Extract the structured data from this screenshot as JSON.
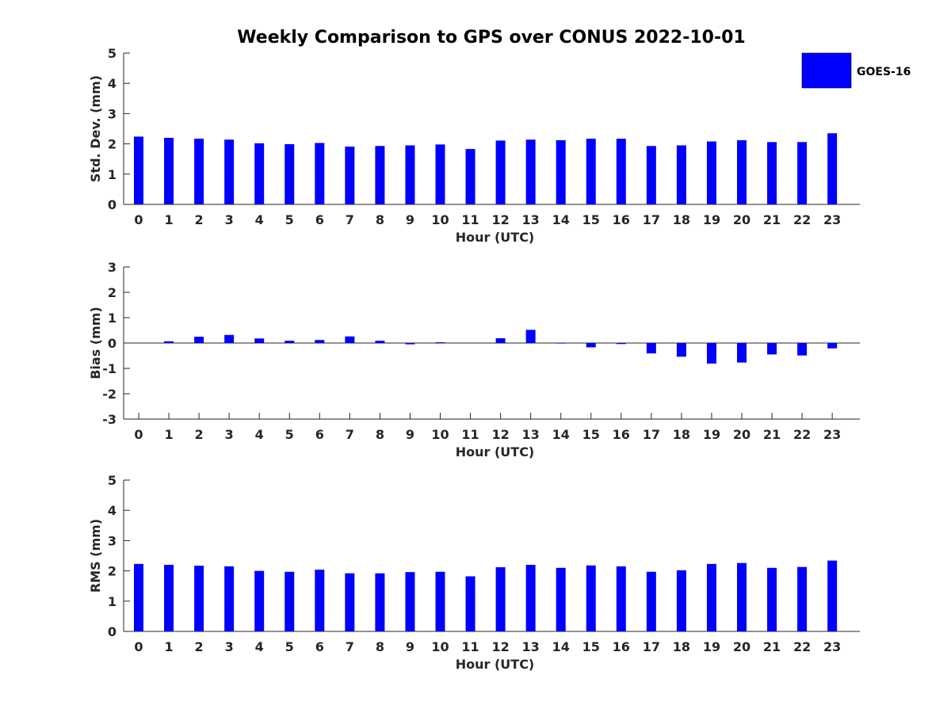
{
  "chart_data": {
    "type": "bar",
    "title": "Weekly Comparison to GPS over CONUS 2022-10-01",
    "legend": {
      "entries": [
        "GOES-16"
      ],
      "placement": "top-right",
      "color": "#0000ff"
    },
    "categories": [
      "0",
      "1",
      "2",
      "3",
      "4",
      "5",
      "6",
      "7",
      "8",
      "9",
      "10",
      "11",
      "12",
      "13",
      "14",
      "15",
      "16",
      "17",
      "18",
      "19",
      "20",
      "21",
      "22",
      "23"
    ],
    "panels": [
      {
        "name": "std-dev",
        "xlabel": "Hour (UTC)",
        "ylabel": "Std. Dev. (mm)",
        "ylim": [
          0,
          5
        ],
        "yticks": [
          "0",
          "1",
          "2",
          "3",
          "4",
          "5"
        ],
        "series": [
          {
            "name": "GOES-16",
            "values": [
              2.24,
              2.2,
              2.17,
              2.14,
              2.02,
              1.99,
              2.03,
              1.91,
              1.93,
              1.95,
              1.98,
              1.83,
              2.11,
              2.14,
              2.12,
              2.17,
              2.17,
              1.93,
              1.95,
              2.08,
              2.12,
              2.06,
              2.06,
              2.35
            ]
          }
        ]
      },
      {
        "name": "bias",
        "xlabel": "Hour (UTC)",
        "ylabel": "Bias (mm)",
        "ylim": [
          -3,
          3
        ],
        "yticks": [
          "-3",
          "-2",
          "-1",
          "0",
          "1",
          "2",
          "3"
        ],
        "series": [
          {
            "name": "GOES-16",
            "values": [
              0.0,
              0.07,
              0.25,
              0.32,
              0.18,
              0.09,
              0.12,
              0.26,
              0.09,
              -0.05,
              0.03,
              0.0,
              0.19,
              0.52,
              -0.02,
              -0.17,
              -0.04,
              -0.41,
              -0.54,
              -0.81,
              -0.77,
              -0.45,
              -0.49,
              -0.21
            ]
          }
        ]
      },
      {
        "name": "rms",
        "xlabel": "Hour (UTC)",
        "ylabel": "RMS (mm)",
        "ylim": [
          0,
          5
        ],
        "yticks": [
          "0",
          "1",
          "2",
          "3",
          "4",
          "5"
        ],
        "series": [
          {
            "name": "GOES-16",
            "values": [
              2.23,
              2.2,
              2.17,
              2.15,
              2.0,
              1.97,
              2.04,
              1.92,
              1.92,
              1.96,
              1.97,
              1.82,
              2.12,
              2.2,
              2.1,
              2.18,
              2.15,
              1.97,
              2.02,
              2.23,
              2.26,
              2.1,
              2.13,
              2.34
            ]
          }
        ]
      }
    ]
  }
}
